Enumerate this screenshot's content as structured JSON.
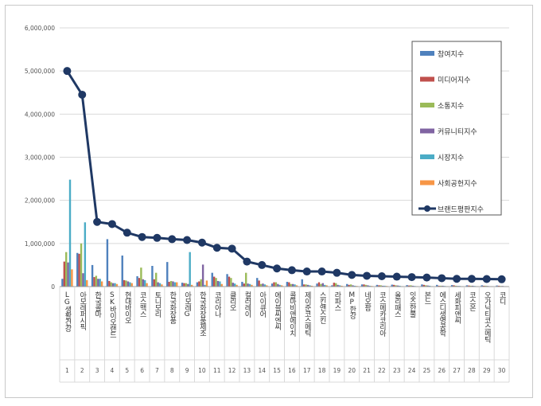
{
  "chart_data": {
    "type": "bar",
    "title": "",
    "xlabel": "",
    "ylabel": "",
    "ylim": [
      0,
      6000000
    ],
    "yticks": [
      "0",
      "1,000,000",
      "2,000,000",
      "3,000,000",
      "4,000,000",
      "5,000,000",
      "6,000,000"
    ],
    "ytick_values": [
      0,
      1000000,
      2000000,
      3000000,
      4000000,
      5000000,
      6000000
    ],
    "grid": true,
    "legend_position": "top-right",
    "index_labels": [
      "1",
      "2",
      "3",
      "4",
      "5",
      "6",
      "7",
      "8",
      "9",
      "10",
      "11",
      "12",
      "13",
      "14",
      "15",
      "16",
      "17",
      "18",
      "19",
      "20",
      "21",
      "22",
      "23",
      "24",
      "25",
      "26",
      "27",
      "28",
      "29",
      "30"
    ],
    "categories": [
      "LG생활건강",
      "아모레퍼시픽",
      "한국콜마",
      "SK바이오랜드",
      "현대바이오",
      "코스맥스",
      "토니모리",
      "한국화장품",
      "아모레G",
      "한국화장품제조",
      "코리아나",
      "클리오",
      "컬러레이",
      "아이큐어",
      "에이블씨엔씨",
      "콜마비앤에이치",
      "제이준코스메틱",
      "스킨앤스킨",
      "라파스",
      "MP한강",
      "네오팜",
      "코스메카코리아",
      "올리패스",
      "잇츠한불",
      "본느",
      "에스디생명공학",
      "세화피앤씨",
      "코스온",
      "오가닉티코스메틱",
      "코디"
    ],
    "series": [
      {
        "name": "참여지수",
        "color": "#4f81bd",
        "values": [
          180000,
          780000,
          500000,
          1100000,
          720000,
          240000,
          480000,
          570000,
          90000,
          100000,
          320000,
          290000,
          110000,
          200000,
          70000,
          110000,
          170000,
          70000,
          30000,
          60000,
          50000,
          40000,
          45000,
          35000,
          50000,
          40000,
          35000,
          30000,
          30000,
          25000
        ]
      },
      {
        "name": "미디어지수",
        "color": "#c0504d",
        "values": [
          580000,
          760000,
          220000,
          130000,
          150000,
          200000,
          170000,
          110000,
          80000,
          120000,
          230000,
          230000,
          70000,
          140000,
          100000,
          100000,
          50000,
          100000,
          90000,
          40000,
          50000,
          30000,
          40000,
          25000,
          40000,
          20000,
          30000,
          25000,
          20000,
          20000
        ]
      },
      {
        "name": "소통지수",
        "color": "#9bbb59",
        "values": [
          800000,
          1000000,
          250000,
          100000,
          140000,
          440000,
          320000,
          130000,
          80000,
          170000,
          200000,
          200000,
          320000,
          60000,
          100000,
          60000,
          50000,
          60000,
          80000,
          50000,
          40000,
          30000,
          30000,
          30000,
          30000,
          20000,
          20000,
          20000,
          20000,
          15000
        ]
      },
      {
        "name": "커뮤니티지수",
        "color": "#8064a2",
        "values": [
          560000,
          310000,
          180000,
          80000,
          120000,
          170000,
          100000,
          120000,
          60000,
          510000,
          130000,
          90000,
          70000,
          70000,
          60000,
          60000,
          40000,
          80000,
          40000,
          30000,
          30000,
          20000,
          25000,
          20000,
          25000,
          20000,
          15000,
          20000,
          15000,
          15000
        ]
      },
      {
        "name": "시장지수",
        "color": "#4bacc6",
        "values": [
          2480000,
          1490000,
          180000,
          80000,
          100000,
          150000,
          80000,
          100000,
          800000,
          40000,
          120000,
          70000,
          60000,
          50000,
          40000,
          50000,
          30000,
          40000,
          30000,
          20000,
          20000,
          20000,
          20000,
          15000,
          20000,
          15000,
          15000,
          15000,
          10000,
          10000
        ]
      },
      {
        "name": "사회공헌지수",
        "color": "#f79646",
        "values": [
          400000,
          150000,
          120000,
          60000,
          80000,
          80000,
          50000,
          100000,
          40000,
          140000,
          60000,
          40000,
          40000,
          30000,
          30000,
          30000,
          20000,
          30000,
          20000,
          15000,
          15000,
          15000,
          10000,
          10000,
          10000,
          10000,
          10000,
          10000,
          10000,
          10000
        ]
      }
    ],
    "line_series": {
      "name": "브랜드평판지수",
      "color": "#1f3864",
      "values": [
        5000000,
        4450000,
        1500000,
        1450000,
        1250000,
        1150000,
        1130000,
        1100000,
        1080000,
        1020000,
        900000,
        880000,
        580000,
        500000,
        420000,
        380000,
        350000,
        350000,
        320000,
        270000,
        250000,
        240000,
        230000,
        220000,
        210000,
        195000,
        180000,
        180000,
        175000,
        170000
      ]
    }
  }
}
